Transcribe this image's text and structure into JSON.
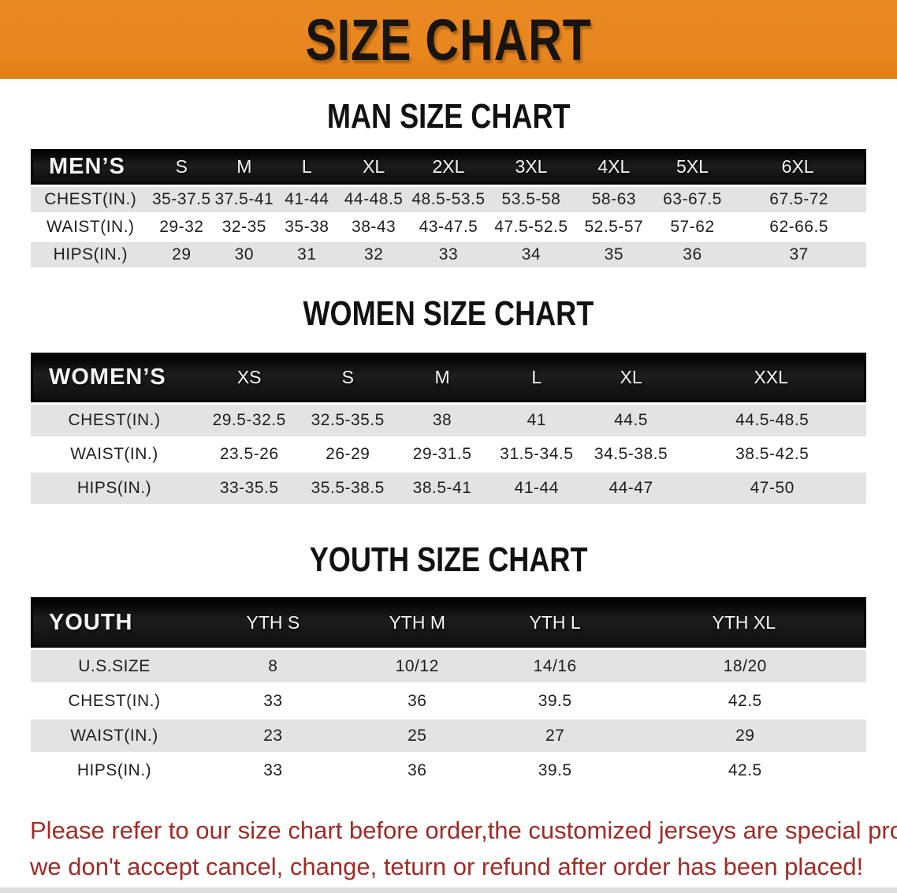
{
  "banner": {
    "title": "SIZE CHART"
  },
  "sections": {
    "men": {
      "heading": "MAN SIZE CHART"
    },
    "women": {
      "heading": "WOMEN SIZE CHART"
    },
    "youth": {
      "heading": "YOUTH SIZE CHART"
    }
  },
  "tables": {
    "men": {
      "header": [
        "MEN’S",
        "S",
        "M",
        "L",
        "XL",
        "2XL",
        "3XL",
        "4XL",
        "5XL",
        "6XL"
      ],
      "rows": [
        {
          "label": "CHEST(IN.)",
          "values": [
            "35-37.5",
            "37.5-41",
            "41-44",
            "44-48.5",
            "48.5-53.5",
            "53.5-58",
            "58-63",
            "63-67.5",
            "67.5-72"
          ]
        },
        {
          "label": "WAIST(IN.)",
          "values": [
            "29-32",
            "32-35",
            "35-38",
            "38-43",
            "43-47.5",
            "47.5-52.5",
            "52.5-57",
            "57-62",
            "62-66.5"
          ]
        },
        {
          "label": "HIPS(IN.)",
          "values": [
            "29",
            "30",
            "31",
            "32",
            "33",
            "34",
            "35",
            "36",
            "37"
          ]
        }
      ]
    },
    "women": {
      "header": [
        "WOMEN’S",
        "XS",
        "S",
        "M",
        "L",
        "XL",
        "XXL"
      ],
      "rows": [
        {
          "label": "CHEST(IN.)",
          "values": [
            "29.5-32.5",
            "32.5-35.5",
            "38",
            "41",
            "44.5",
            "44.5-48.5"
          ]
        },
        {
          "label": "WAIST(IN.)",
          "values": [
            "23.5-26",
            "26-29",
            "29-31.5",
            "31.5-34.5",
            "34.5-38.5",
            "38.5-42.5"
          ]
        },
        {
          "label": "HIPS(IN.)",
          "values": [
            "33-35.5",
            "35.5-38.5",
            "38.5-41",
            "41-44",
            "44-47",
            "47-50"
          ]
        }
      ]
    },
    "youth": {
      "header": [
        "YOUTH",
        "YTH S",
        "YTH M",
        "YTH L",
        "YTH XL"
      ],
      "rows": [
        {
          "label": "U.S.SIZE",
          "values": [
            "8",
            "10/12",
            "14/16",
            "18/20"
          ]
        },
        {
          "label": "CHEST(IN.)",
          "values": [
            "33",
            "36",
            "39.5",
            "42.5"
          ]
        },
        {
          "label": "WAIST(IN.)",
          "values": [
            "23",
            "25",
            "27",
            "29"
          ]
        },
        {
          "label": "HIPS(IN.)",
          "values": [
            "33",
            "36",
            "39.5",
            "42.5"
          ]
        }
      ]
    }
  },
  "disclaimer": {
    "line1": "Please refer to our size chart before order,the customized jerseys are special products,",
    "line2": "we don't accept cancel, change, teturn or refund after order has been placed!"
  },
  "colors": {
    "banner_orange": "#E8861F",
    "header_black": "#141414",
    "row_gray": "#E3E3E3",
    "disclaimer_red": "#A12B26"
  }
}
